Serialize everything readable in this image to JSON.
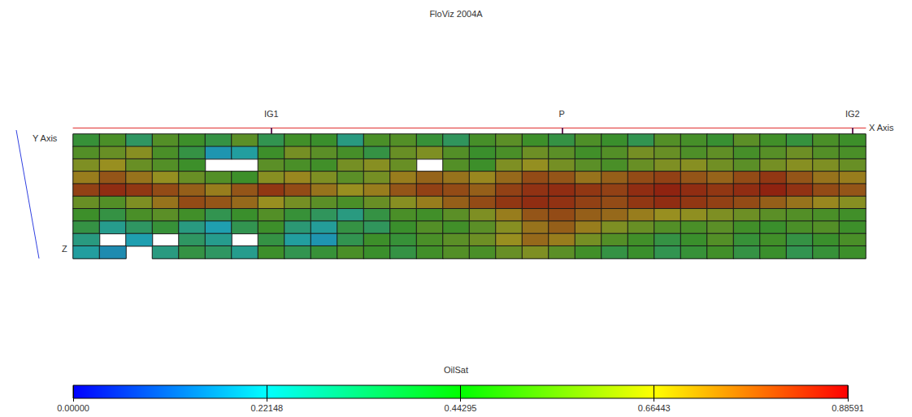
{
  "chart_data": {
    "type": "heatmap",
    "title": "FloViz 2004A",
    "x_label": "X Axis",
    "y_label": "Y Axis",
    "z_label": "Z",
    "tick_labels": false,
    "grid": false,
    "wells": [
      {
        "name": "IG1",
        "column": 7
      },
      {
        "name": "P",
        "column": 18
      },
      {
        "name": "IG2",
        "column": 29
      }
    ],
    "cells": [
      [
        0.42,
        0.48,
        0.35,
        0.5,
        0.45,
        0.4,
        0.52,
        0.38,
        0.46,
        0.44,
        0.3,
        0.48,
        0.5,
        0.42,
        0.36,
        0.47,
        0.52,
        0.45,
        0.4,
        0.49,
        0.44,
        0.38,
        0.5,
        0.47,
        0.43,
        0.52,
        0.46,
        0.41,
        0.48,
        0.45
      ],
      [
        0.5,
        0.55,
        0.62,
        0.48,
        0.4,
        0.2,
        0.25,
        0.45,
        0.58,
        0.52,
        0.47,
        0.4,
        0.55,
        0.6,
        0.5,
        0.44,
        0.48,
        0.56,
        0.52,
        0.46,
        0.5,
        0.58,
        0.55,
        0.49,
        0.53,
        0.47,
        0.51,
        0.56,
        0.5,
        0.48
      ],
      [
        0.6,
        0.66,
        0.55,
        0.5,
        0.45,
        null,
        null,
        0.52,
        0.48,
        0.46,
        0.58,
        0.62,
        0.55,
        null,
        0.5,
        0.45,
        0.6,
        0.65,
        0.58,
        0.52,
        0.48,
        0.55,
        0.6,
        0.62,
        0.57,
        0.52,
        0.58,
        0.62,
        0.6,
        0.55
      ],
      [
        0.7,
        0.78,
        0.72,
        0.65,
        0.55,
        0.5,
        0.45,
        0.62,
        0.68,
        0.6,
        0.52,
        0.58,
        0.7,
        0.75,
        0.72,
        0.68,
        0.74,
        0.8,
        0.78,
        0.72,
        0.76,
        0.8,
        0.82,
        0.78,
        0.75,
        0.8,
        0.84,
        0.78,
        0.72,
        0.7
      ],
      [
        0.82,
        0.86,
        0.84,
        0.8,
        0.76,
        0.7,
        0.78,
        0.84,
        0.8,
        0.72,
        0.66,
        0.7,
        0.78,
        0.82,
        0.8,
        0.76,
        0.82,
        0.85,
        0.86,
        0.84,
        0.82,
        0.86,
        0.88,
        0.86,
        0.84,
        0.86,
        0.88,
        0.85,
        0.8,
        0.78
      ],
      [
        0.55,
        0.5,
        0.6,
        0.72,
        0.8,
        0.78,
        0.74,
        0.66,
        0.58,
        0.52,
        0.48,
        0.55,
        0.62,
        0.7,
        0.76,
        0.8,
        0.84,
        0.86,
        0.85,
        0.82,
        0.8,
        0.84,
        0.86,
        0.84,
        0.82,
        0.8,
        0.76,
        0.72,
        0.68,
        0.62
      ],
      [
        0.45,
        0.4,
        0.48,
        0.52,
        0.46,
        0.38,
        0.44,
        0.5,
        0.42,
        0.36,
        0.3,
        0.4,
        0.48,
        0.46,
        0.52,
        0.6,
        0.7,
        0.78,
        0.8,
        0.76,
        0.74,
        0.7,
        0.66,
        0.64,
        0.6,
        0.56,
        0.52,
        0.5,
        0.48,
        0.46
      ],
      [
        0.4,
        0.28,
        0.35,
        0.42,
        0.3,
        0.22,
        0.38,
        0.45,
        0.32,
        0.26,
        0.4,
        0.36,
        0.44,
        0.5,
        0.46,
        0.52,
        0.62,
        0.72,
        0.76,
        0.7,
        0.6,
        0.55,
        0.5,
        0.48,
        0.52,
        0.46,
        0.44,
        0.48,
        0.5,
        0.45
      ],
      [
        0.3,
        null,
        0.22,
        null,
        0.35,
        0.28,
        null,
        0.4,
        0.25,
        0.2,
        0.38,
        0.45,
        0.42,
        0.48,
        0.52,
        0.56,
        0.66,
        0.74,
        0.7,
        0.58,
        0.5,
        0.46,
        0.4,
        0.44,
        0.5,
        0.42,
        0.46,
        0.4,
        0.44,
        0.48
      ],
      [
        0.25,
        0.18,
        null,
        0.3,
        0.4,
        0.35,
        0.28,
        0.45,
        0.38,
        0.42,
        0.48,
        0.44,
        0.4,
        0.46,
        0.5,
        0.48,
        0.55,
        0.6,
        0.52,
        0.46,
        0.4,
        0.44,
        0.38,
        0.42,
        0.46,
        0.4,
        0.44,
        0.38,
        0.42,
        0.45
      ]
    ],
    "colorbar": {
      "label": "OilSat",
      "range": [
        0,
        0.88591
      ],
      "ticks": [
        {
          "value": 0,
          "label": "0.00000"
        },
        0.22148,
        0.44295,
        0.66443,
        0.88591
      ]
    }
  }
}
